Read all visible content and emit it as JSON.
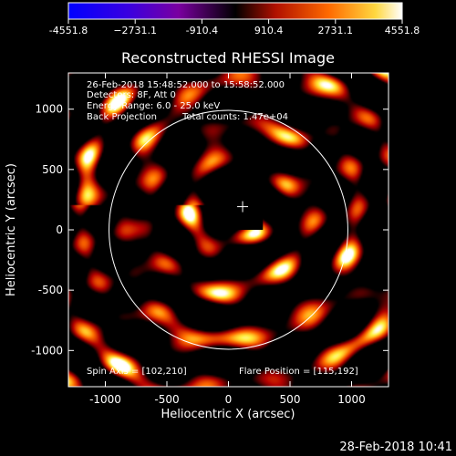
{
  "chart_data": {
    "type": "heatmap",
    "title": "Reconstructed RHESSI Image",
    "xlabel": "Heliocentric X (arcsec)",
    "ylabel": "Heliocentric Y (arcsec)",
    "xlim": [
      -1300,
      1300
    ],
    "ylim": [
      -1300,
      1300
    ],
    "x_ticks": [
      -1000,
      -500,
      0,
      500,
      1000
    ],
    "x_tick_labels": [
      "-1000",
      "-500",
      "0",
      "500",
      "1000"
    ],
    "y_ticks": [
      -1000,
      -500,
      0,
      500,
      1000
    ],
    "y_tick_labels": [
      "-1000",
      "-500",
      "0",
      "500",
      "1000"
    ],
    "colorscale": {
      "min": -4551.8,
      "max": 4551.8,
      "tick_values": [
        -4551.8,
        -2731.1,
        -910.4,
        910.4,
        2731.1,
        4551.8
      ],
      "tick_labels": [
        "-4551.8",
        "−2731.1",
        "-910.4",
        "910.4",
        "2731.1",
        "4551.8"
      ],
      "colors": [
        "#0000ff",
        "#6a00b0",
        "#000000",
        "#b01000",
        "#ff7000",
        "#ffff60",
        "#ffffff"
      ]
    },
    "annotations": {
      "time_range": "26-Feb-2018 15:48:52.000 to 15:58:52.000",
      "detectors": "Detectors: 8F, Att 0",
      "energy": "Energy Range: 6.0 - 25.0 keV",
      "method": "Back Projection",
      "counts": "Total counts: 1.47e+04",
      "spin_axis": "Spin Axis = [102,210]",
      "flare_position": "Flare Position = [115,192]"
    },
    "solar_limb_radius_arcsec": 970,
    "flare_marker": [
      115,
      192
    ],
    "blank_box": {
      "x": [
        -70,
        280
      ],
      "y": [
        0,
        430
      ]
    },
    "pattern_center": [
      150,
      200
    ],
    "grid": false
  },
  "footer": {
    "date": "28-Feb-2018 10:41"
  }
}
